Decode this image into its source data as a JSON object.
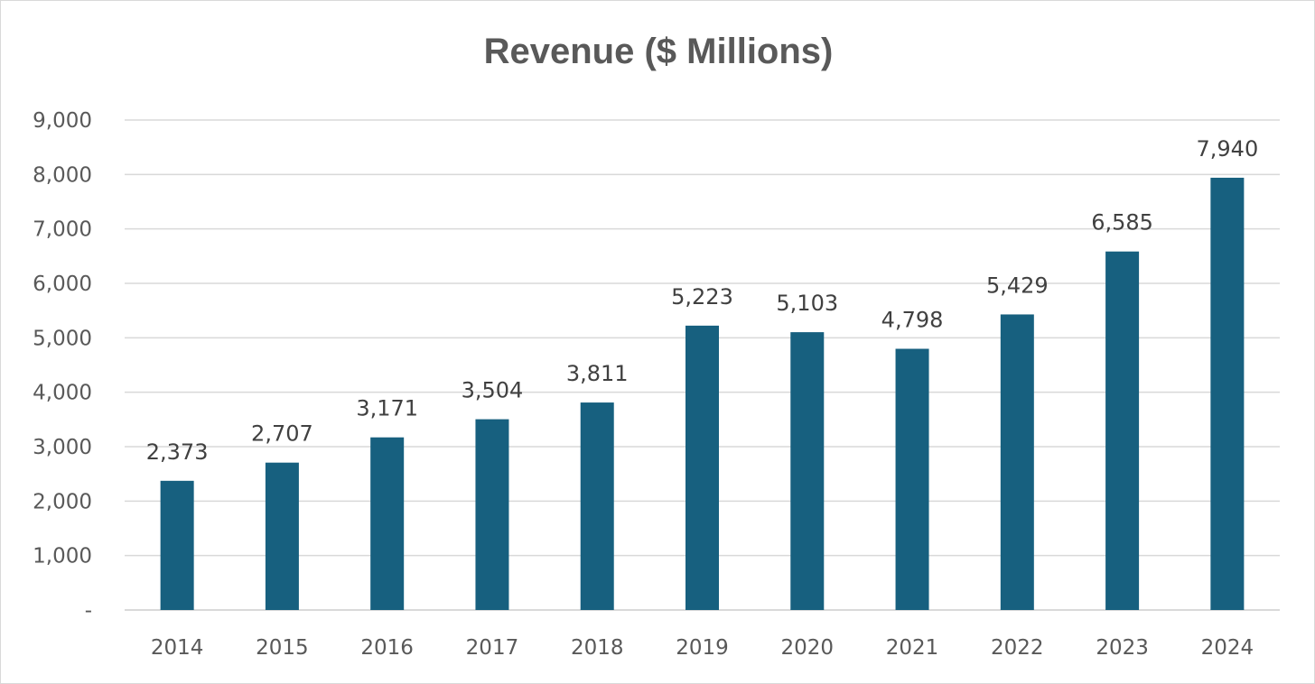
{
  "chart_data": {
    "type": "bar",
    "title": "Revenue ($ Millions)",
    "xlabel": "",
    "ylabel": "",
    "categories": [
      "2014",
      "2015",
      "2016",
      "2017",
      "2018",
      "2019",
      "2020",
      "2021",
      "2022",
      "2023",
      "2024"
    ],
    "values": [
      2373,
      2707,
      3171,
      3504,
      3811,
      5223,
      5103,
      4798,
      5429,
      6585,
      7940
    ],
    "data_labels": [
      "2,373",
      "2,707",
      "3,171",
      "3,504",
      "3,811",
      "5,223",
      "5,103",
      "4,798",
      "5,429",
      "6,585",
      "7,940"
    ],
    "ylim": [
      0,
      9000
    ],
    "y_ticks": [
      0,
      1000,
      2000,
      3000,
      4000,
      5000,
      6000,
      7000,
      8000,
      9000
    ],
    "y_tick_labels": [
      "-",
      "1,000",
      "2,000",
      "3,000",
      "4,000",
      "5,000",
      "6,000",
      "7,000",
      "8,000",
      "9,000"
    ],
    "grid": true,
    "legend": "none",
    "bar_color": "#17607f",
    "grid_color": "#d9d9d9"
  }
}
